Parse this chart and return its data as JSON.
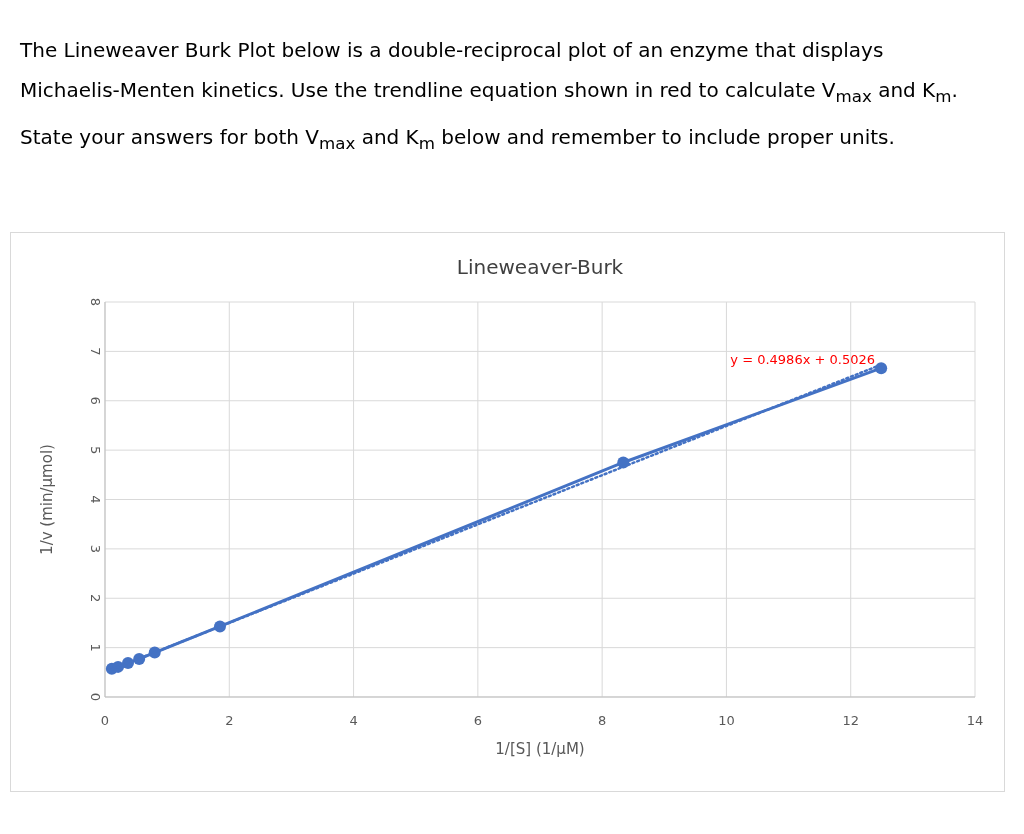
{
  "chart_data": {
    "type": "line",
    "title": "Lineweaver-Burk",
    "xlabel": "1/[S] (1/µM)",
    "ylabel": "1/v (min/µmol)",
    "annotations": [
      "The Lineweaver Burk Plot below is a double-reciprocal plot of an enzyme that displays Michaelis-Menten kinetics.  Use the trendline equation shown in red to calculate V$_{max}$ and K$_{m}$.  State your answers for both V$_{max}$ and K$_{m}$ below and remember to include proper units.",
      "y = 0.4986x + 0.5026"
    ],
    "series": [
      {
        "color": "#4472c4",
        "x": [
          0.11,
          0.21,
          0.37,
          0.55,
          0.8,
          1.85,
          8.34,
          12.49
        ],
        "values": [
          0.57,
          0.61,
          0.69,
          0.77,
          0.9,
          1.43,
          4.75,
          6.66
        ],
        "marker": "circle",
        "line_style": "solid"
      },
      {
        "color": "#4472c4",
        "x": [
          0.11,
          12.49
        ],
        "values": [
          0.56,
          6.73
        ],
        "marker": "none",
        "line_style": "dotted"
      }
    ],
    "xlim": [
      0,
      14
    ],
    "ylim": [
      0,
      8
    ],
    "xticks": [
      0,
      2,
      4,
      6,
      8,
      10,
      12,
      14
    ],
    "yticks": [
      0,
      1,
      2,
      3,
      4,
      5,
      6,
      7,
      8
    ],
    "grid": true
  }
}
